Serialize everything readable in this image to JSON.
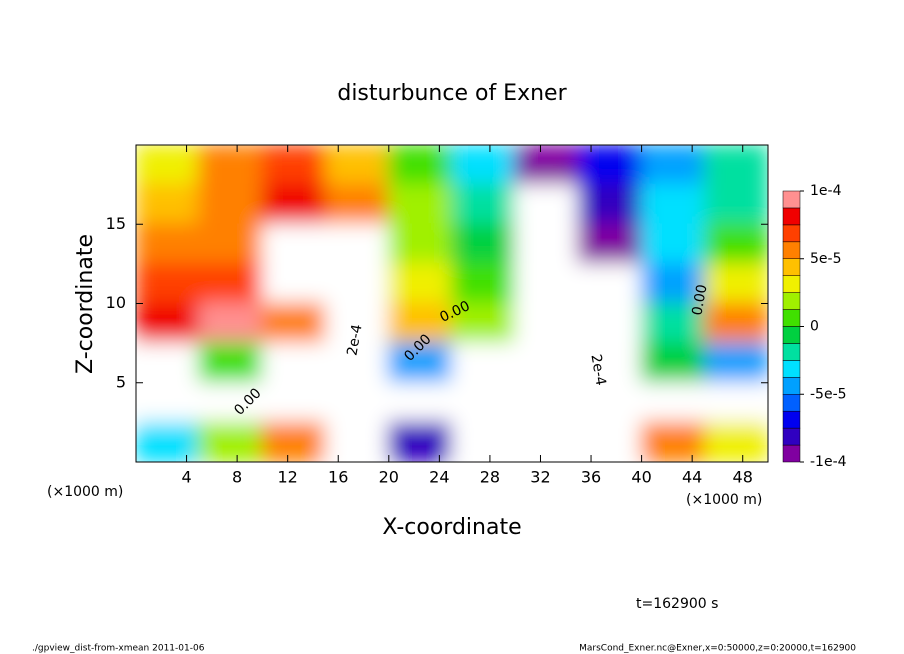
{
  "chart_data": {
    "type": "contour",
    "title": "disturbunce of Exner",
    "xlabel": "X-coordinate",
    "ylabel": "Z-coordinate",
    "xunit": "(×1000 m)",
    "yunit": "(×1000 m)",
    "time_label": "t=162900 s",
    "footer_left": "./gpview_dist-from-xmean  2011-01-06",
    "footer_right": "MarsCond_Exner.nc@Exner,x=0:50000,z=0:20000,t=162900",
    "annotations": [
      "0.00",
      "0.00",
      "2e-4",
      "2e-4",
      "0.00",
      "0.00"
    ],
    "xlim": [
      0,
      50
    ],
    "ylim": [
      0,
      20
    ],
    "xticks": [
      4,
      8,
      12,
      16,
      20,
      24,
      28,
      32,
      36,
      40,
      44,
      48
    ],
    "yticks": [
      5,
      10,
      15
    ],
    "x": [
      2.5,
      7.5,
      12.5,
      17.5,
      22.5,
      27.5,
      32.5,
      37.5,
      42.5,
      47.5
    ],
    "y": [
      18.75,
      16.25,
      13.75,
      11.25,
      8.75,
      6.25,
      3.75,
      1.25
    ],
    "z": [
      [
        3e-05,
        5e-05,
        7e-05,
        4e-05,
        1e-05,
        -3e-05,
        -9e-05,
        -7e-05,
        -4e-05,
        -2e-05
      ],
      [
        4e-05,
        6e-05,
        8e-05,
        6e-05,
        1.5e-05,
        -2e-05,
        -0.00011,
        -8e-05,
        -3e-05,
        -2e-05
      ],
      [
        5e-05,
        6e-05,
        0.00011,
        0.00012,
        2e-05,
        -1e-05,
        -0.00015,
        -9e-05,
        -3e-05,
        1e-05
      ],
      [
        7e-05,
        7e-05,
        0.00012,
        0.00015,
        3e-05,
        0,
        -0.00018,
        -0.00011,
        -4e-05,
        3e-05
      ],
      [
        8e-05,
        9e-05,
        5e-05,
        0.00016,
        4e-05,
        2e-05,
        -0.0002,
        -0.00012,
        -2e-05,
        5e-05
      ],
      [
        0.00012,
        1e-05,
        0.00012,
        0.00018,
        -5e-05,
        0.00012,
        -0.00022,
        -0.00012,
        -1e-05,
        -5e-05
      ],
      [
        0.00012,
        0.00012,
        0.00012,
        0.0002,
        0.00012,
        0.00013,
        -0.0002,
        -0.00015,
        0.00012,
        -0.00012
      ],
      [
        -3e-05,
        2e-05,
        6e-05,
        0.00012,
        -8e-05,
        0.00011,
        -0.00015,
        -0.00012,
        6e-05,
        3e-05
      ]
    ],
    "clim": [
      -0.0001,
      0.0001
    ],
    "colors": [
      "#8000a0",
      "#3000c0",
      "#0000f0",
      "#0060ff",
      "#00a0ff",
      "#00e0ff",
      "#00e0a0",
      "#00d040",
      "#40e000",
      "#a0f000",
      "#f0f000",
      "#ffc000",
      "#ff8000",
      "#ff4000",
      "#f00000",
      "#ff9090"
    ],
    "out_of_range_color": "#ffffff",
    "cticks": [
      {
        "value": 0.0001,
        "label": "1e-4"
      },
      {
        "value": 5e-05,
        "label": "5e-5"
      },
      0,
      {
        "value": -5e-05,
        "label": "-5e-5"
      },
      {
        "value": -0.0001,
        "label": "-1e-4"
      }
    ]
  }
}
